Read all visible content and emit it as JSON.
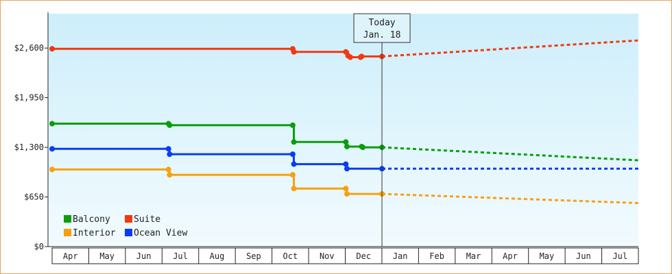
{
  "chart_data": {
    "type": "line",
    "y_tick_labels": [
      "$0",
      "$650",
      "$1,300",
      "$1,950",
      "$2,600"
    ],
    "y_tick_values": [
      0,
      650,
      1300,
      1950,
      2600
    ],
    "ylim": [
      0,
      3050
    ],
    "x_tick_labels": [
      "Apr",
      "May",
      "Jun",
      "Jul",
      "Aug",
      "Sep",
      "Oct",
      "Nov",
      "Dec",
      "Jan",
      "Feb",
      "Mar",
      "Apr",
      "May",
      "Jun",
      "Jul"
    ],
    "x_range_months": [
      "Apr 2023",
      "Aug 2024"
    ],
    "today_marker": {
      "line1": "Today",
      "line2": "Jan. 18",
      "x": "2024-01-18"
    },
    "grid": "none (gradient background)",
    "legend_position": "bottom-left",
    "series": [
      {
        "name": "Suite",
        "color": "#f2380f",
        "points": [
          [
            "2023-04-01",
            2590
          ],
          [
            "2023-07-13",
            2590
          ],
          [
            "2023-10-31",
            2590
          ],
          [
            "2023-11-01",
            2550
          ],
          [
            "2023-12-17",
            2550
          ],
          [
            "2023-12-19",
            2500
          ],
          [
            "2023-12-21",
            2480
          ],
          [
            "2023-12-30",
            2480
          ],
          [
            "2023-12-31",
            2490
          ],
          [
            "2024-01-18",
            2490
          ]
        ],
        "forecast": [
          [
            "2024-01-18",
            2490
          ],
          [
            "2024-08-31",
            2700
          ]
        ]
      },
      {
        "name": "Balcony",
        "color": "#0c9d0c",
        "points": [
          [
            "2023-04-01",
            1610
          ],
          [
            "2023-07-13",
            1610
          ],
          [
            "2023-07-14",
            1590
          ],
          [
            "2023-10-31",
            1590
          ],
          [
            "2023-11-01",
            1370
          ],
          [
            "2023-12-17",
            1370
          ],
          [
            "2023-12-18",
            1310
          ],
          [
            "2023-12-31",
            1310
          ],
          [
            "2024-01-01",
            1300
          ],
          [
            "2024-01-18",
            1300
          ]
        ],
        "forecast": [
          [
            "2024-01-18",
            1300
          ],
          [
            "2024-08-31",
            1130
          ]
        ]
      },
      {
        "name": "Ocean View",
        "color": "#0a3cf5",
        "points": [
          [
            "2023-04-01",
            1280
          ],
          [
            "2023-07-13",
            1280
          ],
          [
            "2023-07-14",
            1210
          ],
          [
            "2023-10-31",
            1210
          ],
          [
            "2023-11-01",
            1080
          ],
          [
            "2023-12-17",
            1080
          ],
          [
            "2023-12-18",
            1020
          ],
          [
            "2024-01-18",
            1020
          ]
        ],
        "forecast": [
          [
            "2024-01-18",
            1020
          ],
          [
            "2024-08-31",
            1020
          ]
        ]
      },
      {
        "name": "Interior",
        "color": "#f7a00f",
        "points": [
          [
            "2023-04-01",
            1010
          ],
          [
            "2023-07-13",
            1010
          ],
          [
            "2023-07-14",
            940
          ],
          [
            "2023-10-31",
            940
          ],
          [
            "2023-11-01",
            760
          ],
          [
            "2023-12-17",
            760
          ],
          [
            "2023-12-18",
            690
          ],
          [
            "2023-12-24",
            690
          ],
          [
            "2023-12-31",
            690
          ],
          [
            "2024-01-18",
            690
          ]
        ],
        "forecast": [
          [
            "2024-01-18",
            690
          ],
          [
            "2024-08-31",
            570
          ]
        ]
      }
    ],
    "legend": [
      {
        "name": "Balcony",
        "color": "#0c9d0c"
      },
      {
        "name": "Suite",
        "color": "#f2380f"
      },
      {
        "name": "Interior",
        "color": "#f7a00f"
      },
      {
        "name": "Ocean View",
        "color": "#0a3cf5"
      }
    ]
  }
}
